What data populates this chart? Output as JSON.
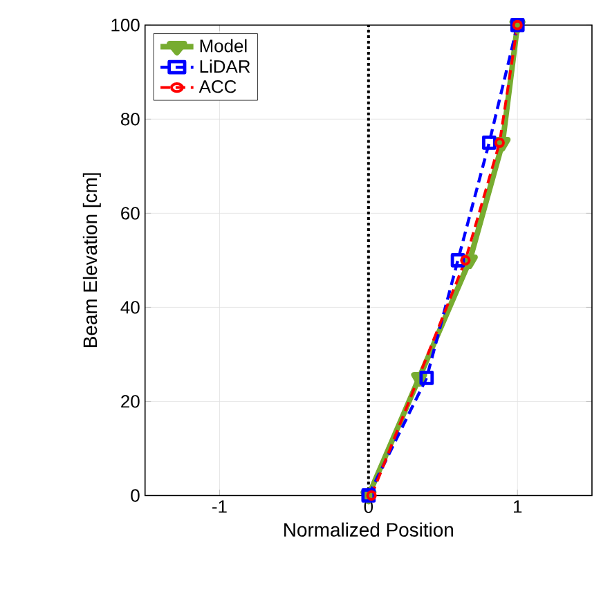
{
  "chart_data": {
    "type": "line",
    "xlabel": "Normalized Position",
    "ylabel": "Beam Elevation [cm]",
    "xlim": [
      -1.5,
      1.5
    ],
    "ylim": [
      0,
      100
    ],
    "xticks": [
      -1,
      0,
      1
    ],
    "yticks": [
      0,
      20,
      40,
      60,
      80,
      100
    ],
    "grid": true,
    "legend": "top left",
    "series": [
      {
        "name": "Model",
        "color": "#77ac30",
        "marker": "triangle",
        "line_style": "solid",
        "x": [
          0,
          0.34,
          0.68,
          0.9,
          1.0
        ],
        "values": [
          0,
          25,
          50,
          75,
          100
        ]
      },
      {
        "name": "LiDAR",
        "color": "#0000ff",
        "marker": "square",
        "line_style": "dashed",
        "x": [
          0,
          0.39,
          0.6,
          0.81,
          1.0
        ],
        "values": [
          0,
          25,
          50,
          75,
          100
        ]
      },
      {
        "name": "ACC",
        "color": "#ff0000",
        "marker": "circle",
        "line_style": "dashed",
        "x": [
          0.02,
          0.65,
          0.88,
          1.0
        ],
        "values": [
          0,
          50,
          75,
          100
        ]
      }
    ],
    "ref_lines": [
      {
        "axis": "x",
        "value": 0,
        "color": "#000000",
        "line_style": "dotted"
      }
    ]
  }
}
